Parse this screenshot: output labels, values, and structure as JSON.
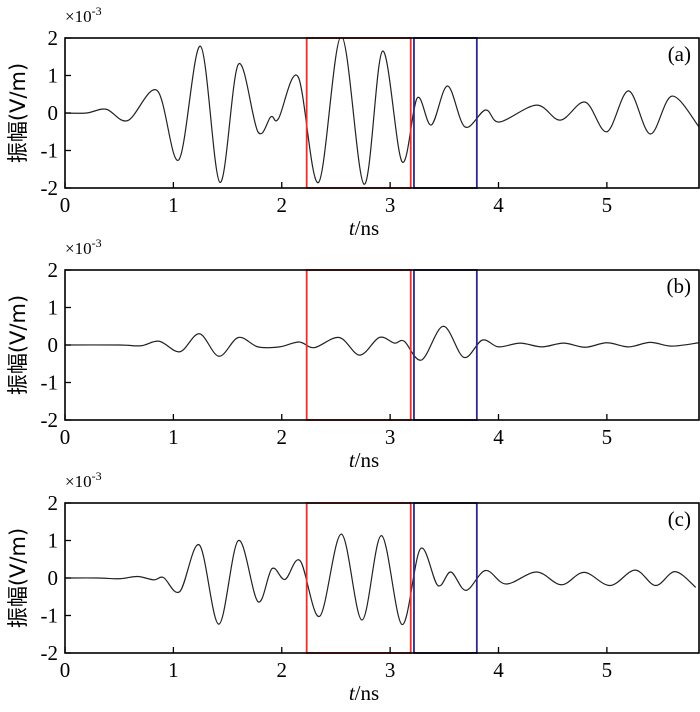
{
  "colors": {
    "signal": "#222222",
    "red_window": "#e8302c",
    "blue_window": "#2a2a8c"
  },
  "chart_data": [
    {
      "type": "line",
      "panel": "(a)",
      "exponent_base": "×10",
      "exponent": "-3",
      "xlabel_var": "t",
      "xlabel_unit": "/ns",
      "ylabel": "振幅(V/m)",
      "xlim": [
        0,
        5.85
      ],
      "ylim": [
        -2,
        2
      ],
      "xticks": [
        "0",
        "1",
        "2",
        "3",
        "4",
        "5"
      ],
      "yticks": [
        "-2",
        "-1",
        "0",
        "1",
        "2"
      ],
      "windows": [
        {
          "color": "red",
          "t": [
            2.23,
            3.19
          ]
        },
        {
          "color": "blue",
          "t": [
            3.22,
            3.8
          ]
        }
      ],
      "points": [
        [
          0,
          0
        ],
        [
          0.2,
          0
        ],
        [
          0.38,
          0.1
        ],
        [
          0.58,
          -0.2
        ],
        [
          0.85,
          0.6
        ],
        [
          1.05,
          -1.25
        ],
        [
          1.25,
          1.78
        ],
        [
          1.43,
          -1.85
        ],
        [
          1.6,
          1.3
        ],
        [
          1.78,
          -0.5
        ],
        [
          1.9,
          -0.1
        ],
        [
          1.97,
          -0.15
        ],
        [
          2.15,
          0.97
        ],
        [
          2.34,
          -1.85
        ],
        [
          2.55,
          2.05
        ],
        [
          2.76,
          -1.9
        ],
        [
          2.93,
          1.65
        ],
        [
          3.11,
          -1.3
        ],
        [
          3.25,
          0.4
        ],
        [
          3.38,
          -0.32
        ],
        [
          3.53,
          0.72
        ],
        [
          3.69,
          -0.37
        ],
        [
          3.88,
          0.08
        ],
        [
          4.01,
          -0.24
        ],
        [
          4.35,
          0.21
        ],
        [
          4.57,
          -0.19
        ],
        [
          4.8,
          0.29
        ],
        [
          5.0,
          -0.5
        ],
        [
          5.2,
          0.59
        ],
        [
          5.4,
          -0.56
        ],
        [
          5.6,
          0.45
        ],
        [
          5.85,
          -0.37
        ]
      ]
    },
    {
      "type": "line",
      "panel": "(b)",
      "exponent_base": "×10",
      "exponent": "-3",
      "xlabel_var": "t",
      "xlabel_unit": "/ns",
      "ylabel": "振幅(V/m)",
      "xlim": [
        0,
        5.85
      ],
      "ylim": [
        -2,
        2
      ],
      "xticks": [
        "0",
        "1",
        "2",
        "3",
        "4",
        "5"
      ],
      "yticks": [
        "-2",
        "-1",
        "0",
        "1",
        "2"
      ],
      "windows": [
        {
          "color": "red",
          "t": [
            2.23,
            3.19
          ]
        },
        {
          "color": "blue",
          "t": [
            3.22,
            3.8
          ]
        }
      ],
      "points": [
        [
          0,
          0
        ],
        [
          0.5,
          0
        ],
        [
          0.7,
          -0.02
        ],
        [
          0.87,
          0.1
        ],
        [
          1.06,
          -0.18
        ],
        [
          1.24,
          0.3
        ],
        [
          1.42,
          -0.3
        ],
        [
          1.6,
          0.2
        ],
        [
          1.78,
          -0.05
        ],
        [
          1.98,
          -0.05
        ],
        [
          2.16,
          0.08
        ],
        [
          2.3,
          -0.07
        ],
        [
          2.53,
          0.2
        ],
        [
          2.72,
          -0.27
        ],
        [
          2.9,
          0.2
        ],
        [
          3.04,
          0.05
        ],
        [
          3.13,
          0.1
        ],
        [
          3.29,
          -0.4
        ],
        [
          3.49,
          0.5
        ],
        [
          3.68,
          -0.33
        ],
        [
          3.85,
          0.13
        ],
        [
          4.0,
          -0.05
        ],
        [
          4.2,
          0.05
        ],
        [
          4.4,
          -0.05
        ],
        [
          4.6,
          0.05
        ],
        [
          4.8,
          -0.06
        ],
        [
          5.0,
          0.06
        ],
        [
          5.2,
          -0.05
        ],
        [
          5.4,
          0.07
        ],
        [
          5.6,
          -0.03
        ],
        [
          5.85,
          0.06
        ]
      ]
    },
    {
      "type": "line",
      "panel": "(c)",
      "exponent_base": "×10",
      "exponent": "-3",
      "xlabel_var": "t",
      "xlabel_unit": "/ns",
      "ylabel": "振幅(V/m)",
      "xlim": [
        0,
        5.85
      ],
      "ylim": [
        -2,
        2
      ],
      "xticks": [
        "0",
        "1",
        "2",
        "3",
        "4",
        "5"
      ],
      "yticks": [
        "-2",
        "-1",
        "0",
        "1",
        "2"
      ],
      "windows": [
        {
          "color": "red",
          "t": [
            2.23,
            3.19
          ]
        },
        {
          "color": "blue",
          "t": [
            3.22,
            3.8
          ]
        }
      ],
      "points": [
        [
          0,
          0
        ],
        [
          0.3,
          0
        ],
        [
          0.5,
          -0.02
        ],
        [
          0.67,
          0.04
        ],
        [
          0.82,
          -0.05
        ],
        [
          0.91,
          0.01
        ],
        [
          1.06,
          -0.36
        ],
        [
          1.24,
          0.88
        ],
        [
          1.42,
          -1.23
        ],
        [
          1.6,
          1.0
        ],
        [
          1.78,
          -0.63
        ],
        [
          1.91,
          0.25
        ],
        [
          2.03,
          -0.04
        ],
        [
          2.17,
          0.46
        ],
        [
          2.35,
          -1.02
        ],
        [
          2.55,
          1.17
        ],
        [
          2.74,
          -1.12
        ],
        [
          2.92,
          1.13
        ],
        [
          3.11,
          -1.24
        ],
        [
          3.28,
          0.78
        ],
        [
          3.44,
          -0.2
        ],
        [
          3.56,
          0.16
        ],
        [
          3.7,
          -0.33
        ],
        [
          3.88,
          0.2
        ],
        [
          4.07,
          -0.16
        ],
        [
          4.35,
          0.16
        ],
        [
          4.58,
          -0.18
        ],
        [
          4.79,
          0.15
        ],
        [
          5.03,
          -0.2
        ],
        [
          5.26,
          0.21
        ],
        [
          5.45,
          -0.2
        ],
        [
          5.63,
          0.17
        ],
        [
          5.82,
          -0.25
        ]
      ]
    }
  ]
}
